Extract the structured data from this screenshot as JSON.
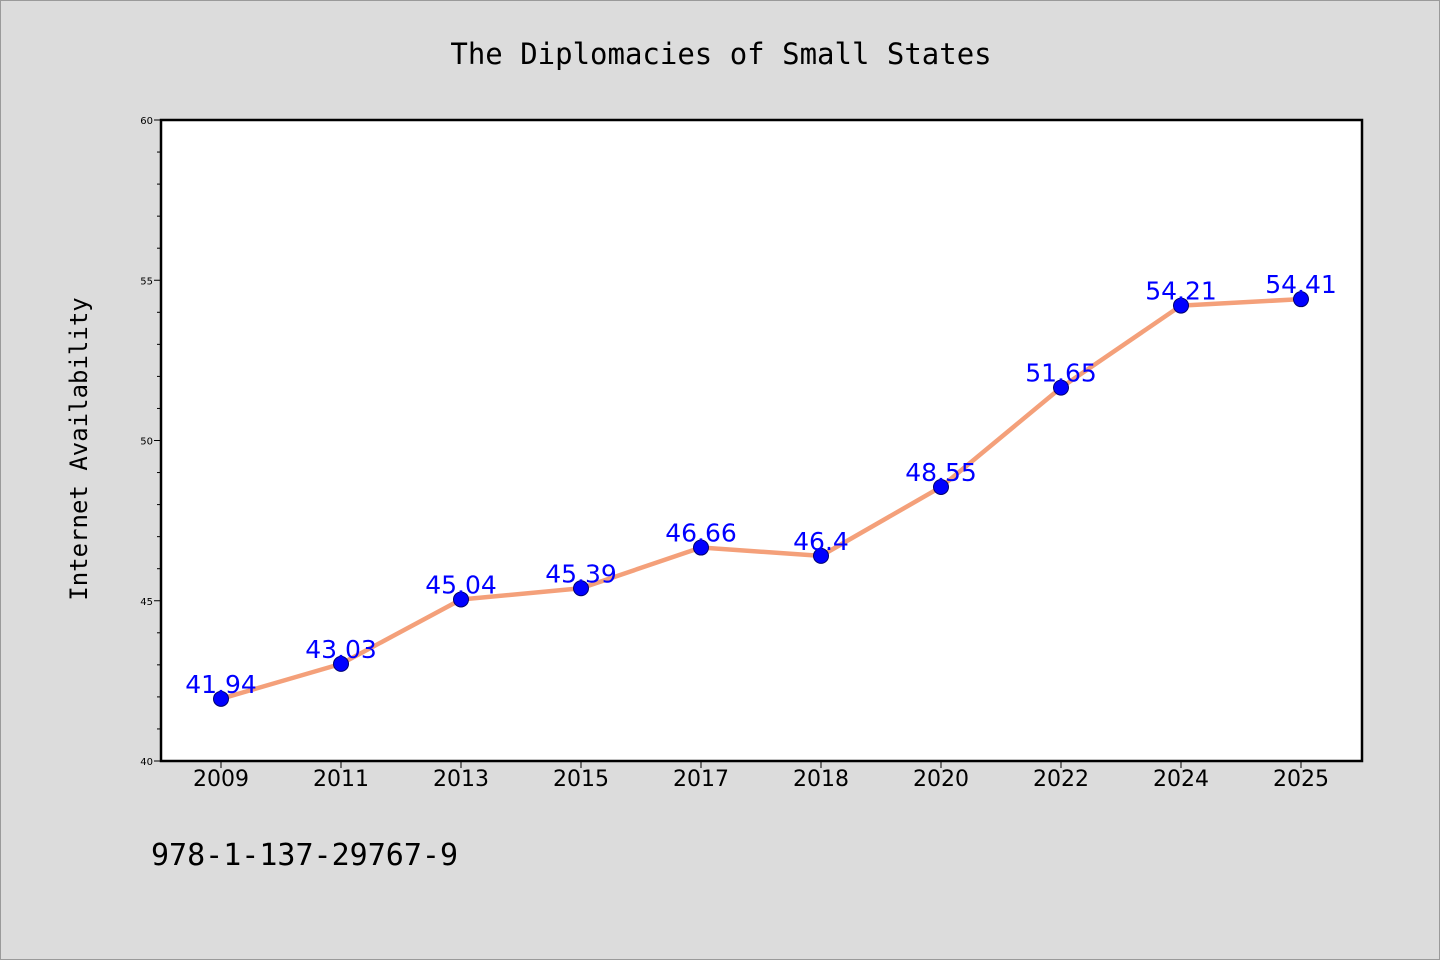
{
  "chart_data": {
    "type": "line",
    "title": "The Diplomacies of Small States",
    "xlabel": "",
    "ylabel": "Internet Availability",
    "categories": [
      "2009",
      "2011",
      "2013",
      "2015",
      "2017",
      "2018",
      "2020",
      "2022",
      "2024",
      "2025"
    ],
    "series": [
      {
        "values": [
          41.94,
          43.03,
          45.04,
          45.39,
          46.66,
          46.4,
          48.55,
          51.65,
          54.21,
          54.41
        ],
        "data_labels": [
          "41.94",
          "43.03",
          "45.04",
          "45.39",
          "46.66",
          "46.4",
          "48.55",
          "51.65",
          "54.21",
          "54.41"
        ],
        "line_color": "#f4a07a",
        "marker_color": "#0000ff"
      }
    ],
    "ylim": [
      40,
      60
    ],
    "yticks": [
      "40",
      "45",
      "50",
      "55",
      "60"
    ],
    "grid": false,
    "legend": "none",
    "plot_background": "#ffffff",
    "figure_background": "#dcdcdc",
    "data_label_color": "#0000ff"
  },
  "annotation": {
    "isbn": "978-1-137-29767-9"
  }
}
